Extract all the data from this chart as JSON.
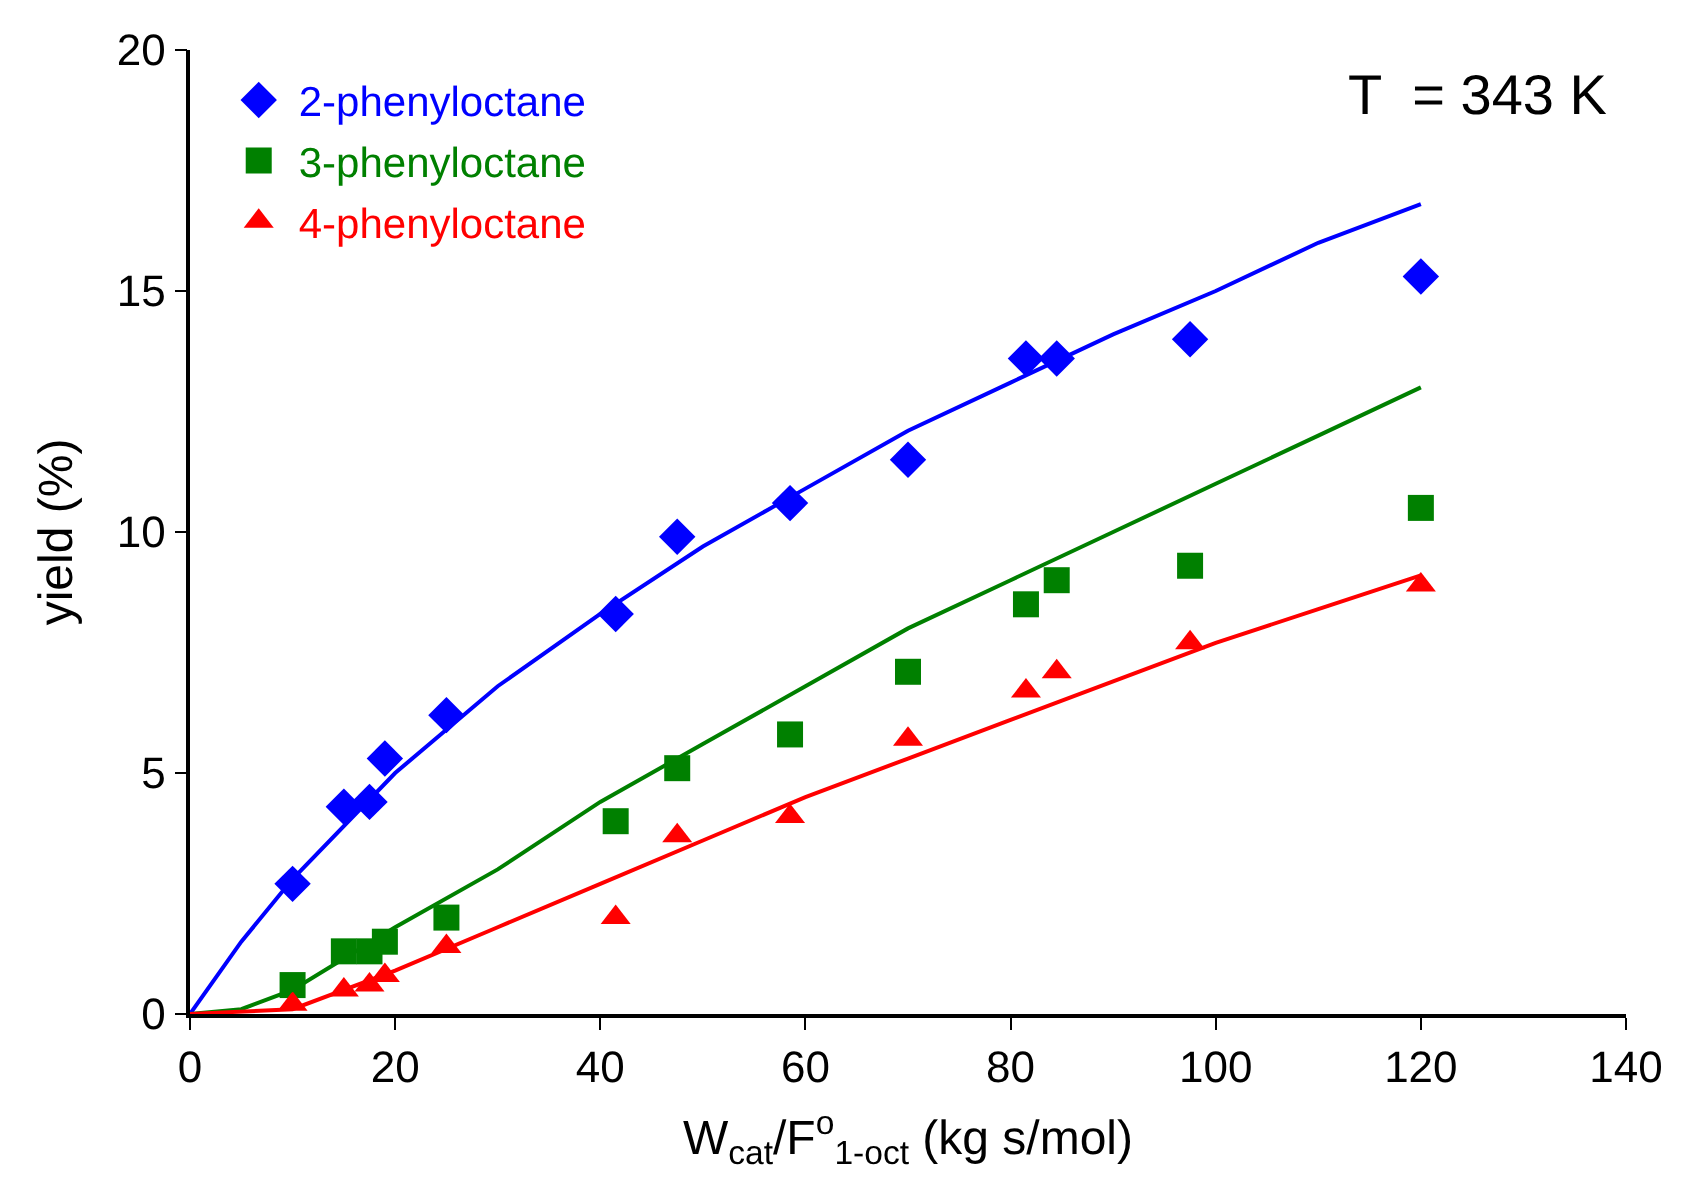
{
  "chart_data": {
    "type": "scatter",
    "xlabel": "W$_{cat}$/F$^{o}$$_{1-oct}$ (kg s/mol)",
    "ylabel": "yield (%)",
    "xlim": [
      0,
      140
    ],
    "ylim": [
      0,
      20
    ],
    "xticks": [
      0,
      20,
      40,
      60,
      80,
      100,
      120,
      140
    ],
    "yticks": [
      0,
      5,
      10,
      15,
      20
    ],
    "legend": "top left",
    "annotations": [
      "T  = 343 K"
    ],
    "series": [
      {
        "name": "2-phenyloctane",
        "marker": "diamond",
        "color": "#0000ff",
        "x": [
          10,
          15,
          17.5,
          19,
          25,
          41.5,
          47.5,
          58.5,
          70,
          81.5,
          84.5,
          97.5,
          120
        ],
        "values": [
          2.7,
          4.3,
          4.4,
          5.3,
          6.2,
          8.3,
          9.9,
          10.6,
          11.5,
          13.6,
          13.6,
          14.0,
          15.3
        ]
      },
      {
        "name": "3-phenyloctane",
        "marker": "square",
        "color": "#008000",
        "x": [
          10,
          15,
          17.5,
          19,
          25,
          41.5,
          47.5,
          58.5,
          70,
          81.5,
          84.5,
          97.5,
          120
        ],
        "values": [
          0.6,
          1.3,
          1.3,
          1.5,
          2.0,
          4.0,
          5.1,
          5.8,
          7.1,
          8.5,
          9.0,
          9.3,
          10.5
        ]
      },
      {
        "name": "4-phenyloctane",
        "marker": "triangle",
        "color": "#ff0000",
        "x": [
          10,
          15,
          17.5,
          19,
          25,
          41.5,
          47.5,
          58.5,
          70,
          81.5,
          84.5,
          97.5,
          120
        ],
        "values": [
          0.2,
          0.5,
          0.6,
          0.8,
          1.4,
          2.0,
          3.7,
          4.1,
          5.7,
          6.7,
          7.1,
          7.7,
          8.9
        ]
      },
      {
        "type": "line",
        "marker": "none",
        "color": "#0000ff",
        "x": [
          0,
          5,
          10,
          20,
          30,
          40,
          50,
          60,
          70,
          80,
          90,
          100,
          110,
          120
        ],
        "values": [
          0,
          1.5,
          2.8,
          5.0,
          6.8,
          8.3,
          9.7,
          10.9,
          12.1,
          13.1,
          14.1,
          15.0,
          16.0,
          16.8
        ]
      },
      {
        "type": "line",
        "marker": "none",
        "color": "#008000",
        "x": [
          0,
          5,
          10,
          20,
          30,
          40,
          50,
          60,
          70,
          80,
          90,
          100,
          110,
          120
        ],
        "values": [
          0,
          0.1,
          0.5,
          1.8,
          3.0,
          4.4,
          5.6,
          6.8,
          8.0,
          9.0,
          10.0,
          11.0,
          12.0,
          13.0
        ]
      },
      {
        "type": "line",
        "marker": "none",
        "color": "#ff0000",
        "x": [
          0,
          10,
          20,
          30,
          40,
          50,
          60,
          70,
          80,
          90,
          100,
          110,
          120
        ],
        "values": [
          0,
          0.1,
          0.9,
          1.8,
          2.7,
          3.6,
          4.5,
          5.3,
          6.1,
          6.9,
          7.7,
          8.4,
          9.1
        ]
      }
    ]
  }
}
